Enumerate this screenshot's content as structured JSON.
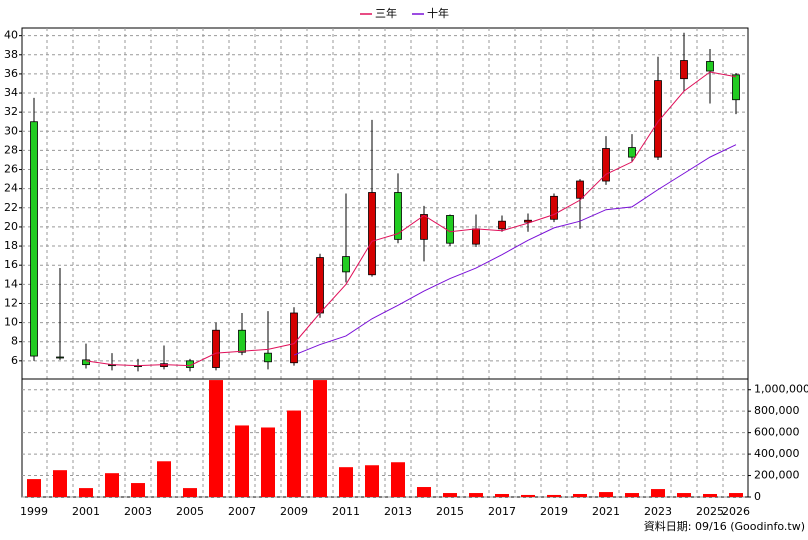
{
  "chart_data": [
    {
      "type": "candlestick",
      "legend": "top",
      "grid": true,
      "up_color": "#d40000",
      "down_color": "#22cc22",
      "ylim": [
        4.1,
        40.8
      ],
      "yticks": [
        6,
        8,
        10,
        12,
        14,
        16,
        18,
        20,
        22,
        24,
        26,
        28,
        30,
        32,
        34,
        36,
        38,
        40
      ],
      "open": [
        31,
        6.4,
        6.1,
        5.6,
        5.5,
        5.4,
        6.0,
        5.3,
        9.2,
        6.8,
        5.8,
        11.0,
        16.9,
        15.0,
        23.6,
        18.7,
        21.2,
        18.2,
        19.8,
        20.5,
        20.8,
        23.0,
        24.8,
        28.3,
        27.3,
        35.5,
        37.3,
        35.9
      ],
      "high": [
        33.5,
        15.7,
        7.8,
        6.8,
        6.2,
        7.6,
        6.2,
        10.0,
        11.0,
        11.2,
        11.6,
        17.2,
        23.5,
        31.2,
        25.6,
        22.2,
        21.3,
        21.3,
        21.2,
        21.4,
        23.5,
        25.0,
        29.5,
        29.7,
        37.8,
        40.3,
        38.6,
        36.1
      ],
      "low": [
        6.0,
        6.1,
        5.2,
        5.0,
        4.9,
        5.1,
        4.9,
        5.0,
        6.6,
        5.1,
        5.5,
        10.5,
        14.2,
        14.8,
        18.3,
        16.4,
        18.0,
        17.9,
        19.5,
        19.5,
        20.5,
        19.8,
        24.4,
        26.8,
        27.0,
        34.2,
        32.9,
        31.8
      ],
      "close": [
        6.5,
        6.3,
        5.6,
        5.5,
        5.4,
        5.7,
        5.3,
        9.2,
        6.9,
        5.9,
        11.0,
        16.8,
        15.3,
        23.6,
        18.7,
        21.3,
        18.3,
        19.8,
        20.6,
        20.7,
        23.2,
        24.8,
        28.2,
        27.3,
        35.3,
        37.4,
        36.3,
        33.3
      ],
      "series": [
        {
          "name": "三年",
          "color": "#e0105a",
          "values": [
            null,
            null,
            6.0,
            5.6,
            5.5,
            5.6,
            5.5,
            6.8,
            7.0,
            7.2,
            7.8,
            11.0,
            14.0,
            18.5,
            19.3,
            21.2,
            19.5,
            19.8,
            19.6,
            20.4,
            21.3,
            22.8,
            25.5,
            26.8,
            31.0,
            34.2,
            36.2,
            35.7
          ]
        },
        {
          "name": "十年",
          "color": "#7a10d8",
          "values": [
            null,
            null,
            null,
            null,
            null,
            null,
            null,
            null,
            null,
            null,
            6.6,
            7.7,
            8.6,
            10.4,
            11.8,
            13.3,
            14.6,
            15.7,
            17.1,
            18.6,
            19.9,
            20.6,
            21.8,
            22.1,
            23.9,
            25.6,
            27.3,
            28.6
          ]
        }
      ]
    },
    {
      "type": "bar",
      "color": "#ff0000",
      "grid": true,
      "categories": [
        "1999",
        null,
        "2001",
        null,
        "2003",
        null,
        "2005",
        null,
        "2007",
        null,
        "2009",
        null,
        "2011",
        null,
        "2013",
        null,
        "2015",
        null,
        "2017",
        null,
        "2019",
        null,
        "2021",
        null,
        "2023",
        null,
        "2025",
        "2026"
      ],
      "values": [
        167000,
        250000,
        83000,
        222000,
        130000,
        333000,
        83000,
        1090000,
        667000,
        648000,
        806000,
        1090000,
        278000,
        296000,
        324000,
        93000,
        37000,
        37000,
        28000,
        19000,
        19000,
        28000,
        46000,
        37000,
        74000,
        37000,
        28000,
        37000
      ],
      "ylim": [
        0,
        1100000
      ],
      "yticks": [
        0,
        {
          "value": 200000,
          "label": "200,000"
        },
        {
          "value": 400000,
          "label": "400,000"
        },
        {
          "value": 600000,
          "label": "600,000"
        },
        {
          "value": 800000,
          "label": "800,000"
        },
        {
          "value": 1000000,
          "label": "1,000,000"
        }
      ]
    }
  ],
  "footer": "資料日期: 09/16 (Goodinfo.tw)"
}
